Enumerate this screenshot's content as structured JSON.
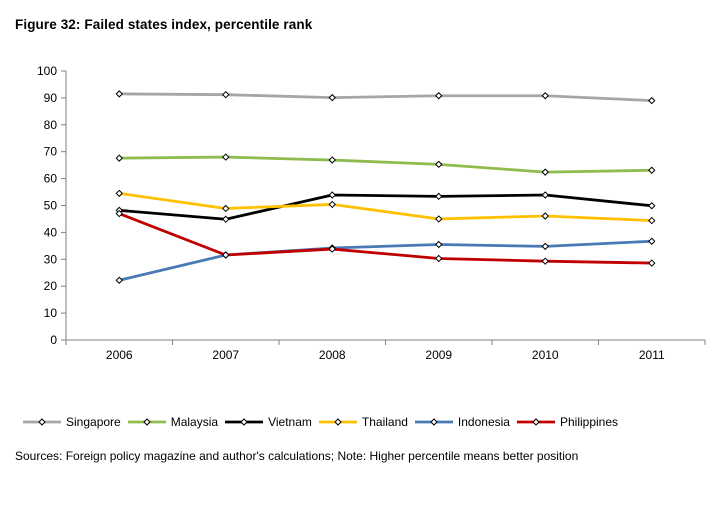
{
  "figure": {
    "title": "Figure 32: Failed states index, percentile rank",
    "note": "Sources: Foreign policy magazine and author's calculations; Note: Higher percentile means better position"
  },
  "chart_data": {
    "type": "line",
    "title": "Figure 32: Failed states index, percentile rank",
    "xlabel": "",
    "ylabel": "",
    "categories": [
      "2006",
      "2007",
      "2008",
      "2009",
      "2010",
      "2011"
    ],
    "ylim": [
      0,
      100
    ],
    "yticks": [
      0,
      10,
      20,
      30,
      40,
      50,
      60,
      70,
      80,
      90,
      100
    ],
    "grid": false,
    "legend": "bottom",
    "marker": "diamond",
    "series": [
      {
        "name": "Singapore",
        "color": "#a6a6a6",
        "values": [
          91.5,
          91.2,
          90.1,
          90.8,
          90.8,
          89.0
        ]
      },
      {
        "name": "Malaysia",
        "color": "#8fbc4f",
        "values": [
          67.6,
          68.0,
          66.9,
          65.3,
          62.4,
          63.1
        ]
      },
      {
        "name": "Vietnam",
        "color": "#000000",
        "values": [
          48.2,
          44.9,
          53.9,
          53.4,
          53.9,
          49.9
        ]
      },
      {
        "name": "Thailand",
        "color": "#ffc000",
        "values": [
          54.5,
          48.9,
          50.4,
          45.0,
          46.1,
          44.4
        ]
      },
      {
        "name": "Indonesia",
        "color": "#4a7ab5",
        "values": [
          22.2,
          31.6,
          34.2,
          35.5,
          34.8,
          36.7
        ]
      },
      {
        "name": "Philippines",
        "color": "#c00000",
        "values": [
          47.0,
          31.6,
          33.8,
          30.3,
          29.3,
          28.6
        ]
      }
    ]
  }
}
